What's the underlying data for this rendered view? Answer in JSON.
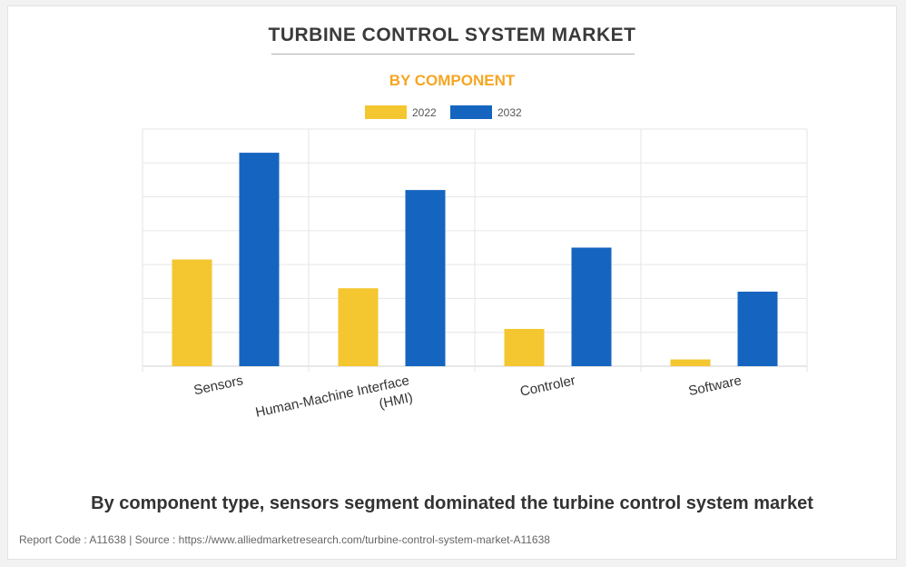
{
  "title": "TURBINE CONTROL SYSTEM MARKET",
  "subtitle": "BY COMPONENT",
  "caption": "By component type, sensors segment dominated the turbine control system market",
  "footer": "Report Code : A11638  |  Source : https://www.alliedmarketresearch.com/turbine-control-system-market-A11638",
  "colors": {
    "s2022": "#f4c62f",
    "s2032": "#1565c0",
    "subtitle": "#f5a623"
  },
  "chart_data": {
    "type": "bar",
    "title": "TURBINE CONTROL SYSTEM MARKET",
    "subtitle": "BY COMPONENT",
    "categories": [
      "Sensors",
      "Human-Machine Interface (HMI)",
      "Controler",
      "Software"
    ],
    "category_label_lines": [
      [
        "Sensors"
      ],
      [
        "Human-Machine Interface",
        "(HMI)"
      ],
      [
        "Controler"
      ],
      [
        "Software"
      ]
    ],
    "series": [
      {
        "name": "2022",
        "color": "#f4c62f",
        "values": [
          3.15,
          2.3,
          1.1,
          0.2
        ]
      },
      {
        "name": "2032",
        "color": "#1565c0",
        "values": [
          6.3,
          5.2,
          3.5,
          2.2
        ]
      }
    ],
    "ylim": [
      0,
      7
    ],
    "y_grid_step": 1,
    "xlabel": "",
    "ylabel": "",
    "y_tick_labels_shown": false,
    "legend": "top-center",
    "grid": true
  }
}
